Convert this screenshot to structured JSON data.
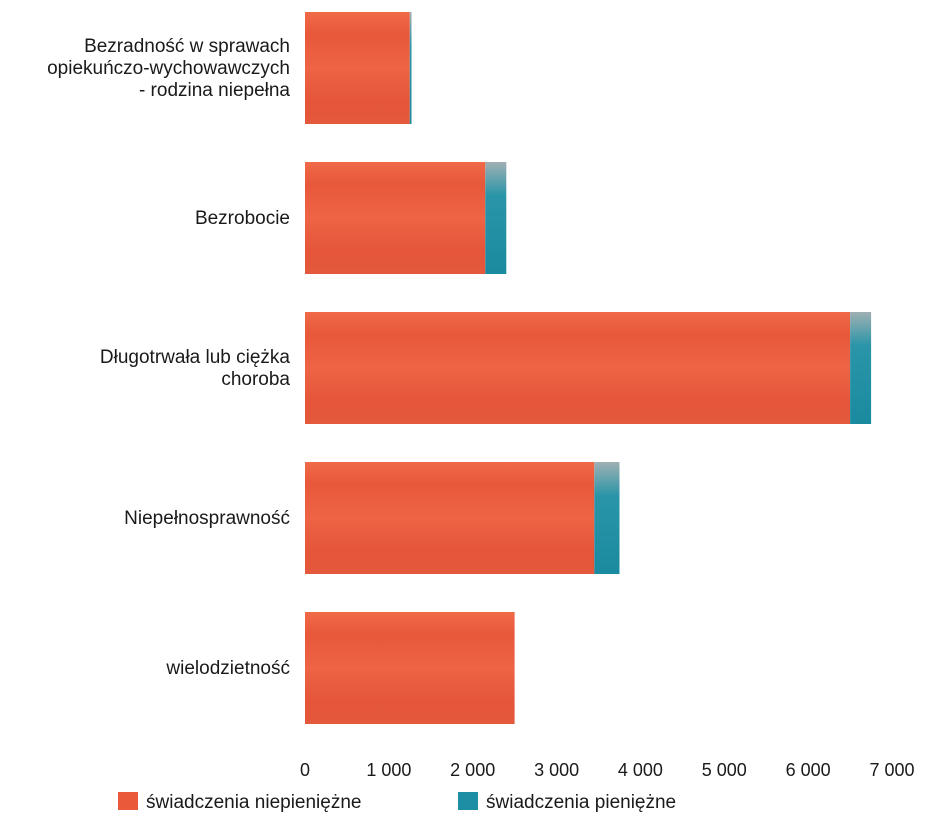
{
  "chart_data": {
    "type": "bar",
    "orientation": "horizontal",
    "stacked": true,
    "categories": [
      [
        "Bezradność w sprawach",
        "opiekuńczo-wychowawczych",
        "- rodzina niepełna"
      ],
      [
        "Bezrobocie"
      ],
      [
        "Długotrwała lub ciężka",
        "choroba"
      ],
      [
        "Niepełnosprawność"
      ],
      [
        "wielodzietność"
      ]
    ],
    "series": [
      {
        "name": "świadczenia niepieniężne",
        "color": "#ea5a3a",
        "values": [
          1250,
          2150,
          6500,
          3450,
          2500
        ]
      },
      {
        "name": "świadczenia pieniężne",
        "color": "#1d8ea3",
        "values": [
          20,
          250,
          250,
          300,
          0
        ]
      }
    ],
    "xlim": [
      0,
      7000
    ],
    "x_ticks": [
      0,
      1000,
      2000,
      3000,
      4000,
      5000,
      6000,
      7000
    ],
    "x_tick_labels": [
      "0",
      "1 000",
      "2 000",
      "3 000",
      "4 000",
      "5 000",
      "6 000",
      "7 000"
    ],
    "grid": false,
    "legend_position": "bottom-left",
    "title": "",
    "xlabel": "",
    "ylabel": ""
  }
}
